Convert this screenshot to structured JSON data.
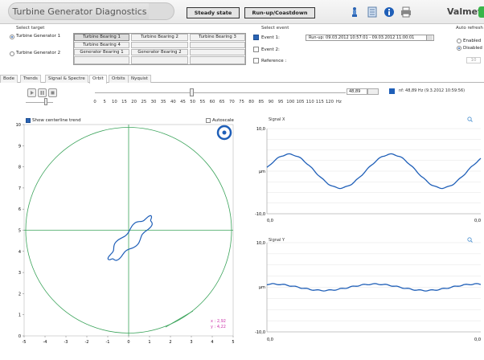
{
  "header": {
    "title": "Turbine Generator Diagnostics",
    "steady_state": "Steady state",
    "runup": "Run-up/Coastdown",
    "logo": "Valmet",
    "icons": [
      "sensor-icon",
      "list-icon",
      "info-icon",
      "print-icon"
    ]
  },
  "target": {
    "label": "Select target",
    "generators": [
      {
        "label": "Turbine Generator 1",
        "selected": true
      },
      {
        "label": "Turbine Generator 2",
        "selected": false
      }
    ],
    "bearings": {
      "row1": [
        "Turbine Bearing 1",
        "Turbine Bearing 2",
        "Turbine Bearing 3"
      ],
      "row2": [
        "Turbine Bearing 4"
      ],
      "row3": [
        "Generator Bearing 1",
        "Generator Bearing 2"
      ]
    }
  },
  "event": {
    "label": "Select event",
    "items": [
      {
        "label": "Event 1:",
        "checked": true
      },
      {
        "label": "Event 2:",
        "checked": false
      },
      {
        "label": "Reference :",
        "checked": false
      }
    ],
    "event1_value": "Run-up: 09.03.2012 10:57:01 - 09.03.2012 11:00:01"
  },
  "auto_refresh": {
    "label": "Auto refresh",
    "enabled": "Enabled",
    "disabled": "Disabled",
    "selected": "Disabled",
    "interval": "10"
  },
  "tabs": [
    "Bode",
    "Trends",
    "Signal & Spectre",
    "Orbit",
    "Orbits",
    "Nyquist"
  ],
  "active_tab": "Orbit",
  "frequency": {
    "ticks": [
      "0",
      "5",
      "10",
      "15",
      "20",
      "25",
      "30",
      "35",
      "40",
      "45",
      "50",
      "55",
      "60",
      "65",
      "70",
      "75",
      "80",
      "85",
      "90",
      "95",
      "100",
      "105",
      "110",
      "115",
      "120"
    ],
    "unit": "Hz",
    "value": "48,89",
    "legend": "nf: 48,89 Hz  (9.3.2012 10:59:56)",
    "legend_color": "#1f5fb8"
  },
  "orbit": {
    "show_centerline": "Show centerline trend",
    "autoscale": "Autoscale",
    "y_ticks": [
      "10",
      "9",
      "8",
      "7",
      "6",
      "5",
      "4",
      "3",
      "2",
      "1",
      "0"
    ],
    "x_ticks": [
      "-5",
      "-4",
      "-3",
      "-2",
      "-1",
      "0",
      "1",
      "2",
      "3",
      "4",
      "5"
    ],
    "cursor_x": "x : 2,92",
    "cursor_y": "y : 4,22"
  },
  "signal_x": {
    "title": "Signal X",
    "y_top": "10,0",
    "y_unit": "µm",
    "y_bottom": "-10,0",
    "x_left": "0,0",
    "x_right": "0,0"
  },
  "signal_y": {
    "title": "Signal Y",
    "y_top": "10,0",
    "y_unit": "µm",
    "y_bottom": "-10,0",
    "x_left": "0,0",
    "x_right": "0,0"
  },
  "colors": {
    "trace": "#1f5fb8",
    "grid": "#3aa35a",
    "cursor_text": "#cc33aa"
  }
}
